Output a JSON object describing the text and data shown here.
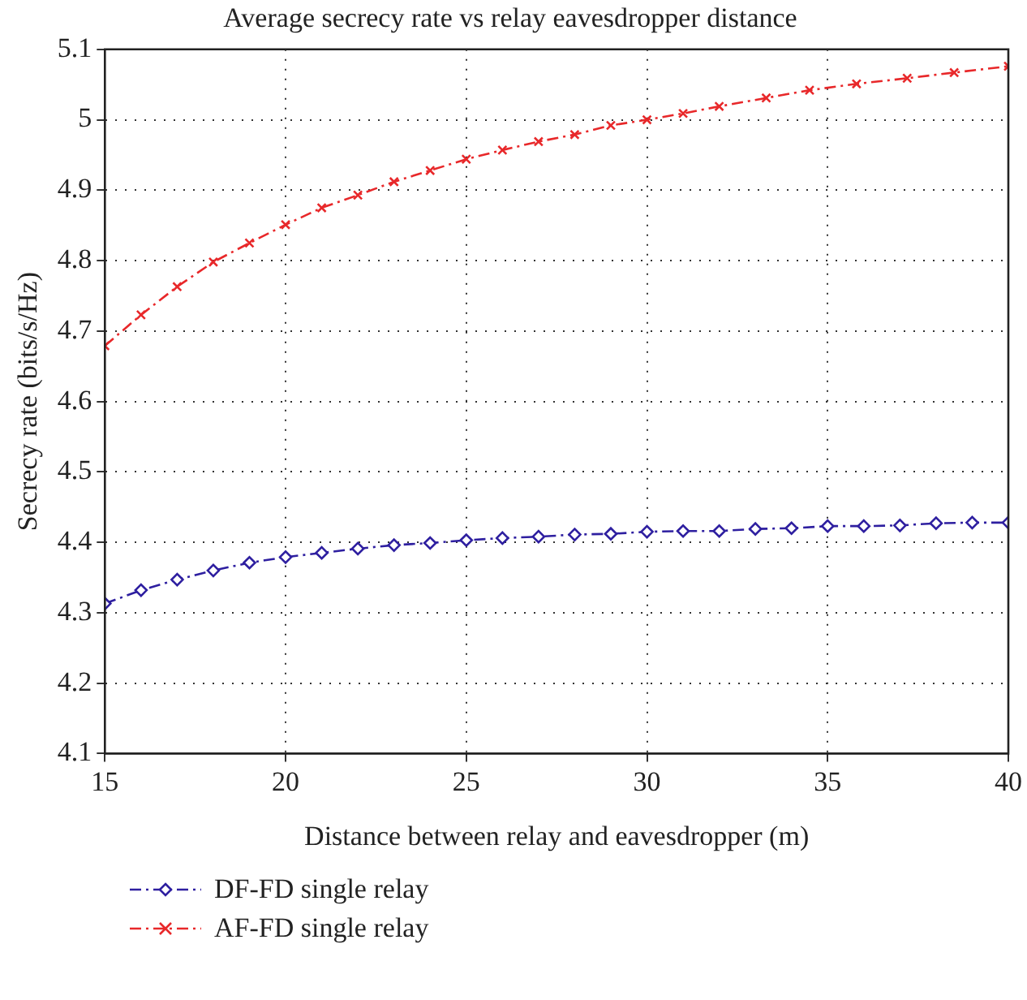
{
  "chart_data": {
    "type": "line",
    "title": "Average secrecy rate vs relay eavesdropper distance",
    "xlabel": "Distance between relay and eavesdropper (m)",
    "ylabel": "Secrecy rate (bits/s/Hz)",
    "xlim": [
      15,
      40
    ],
    "xticks": [
      15,
      20,
      25,
      30,
      35,
      40
    ],
    "ylim": [
      4.1,
      5.1
    ],
    "yticks": [
      4.1,
      4.2,
      4.3,
      4.4,
      4.5,
      4.6,
      4.7,
      4.8,
      4.9,
      5,
      5.1
    ],
    "grid": true,
    "legend": "bottom",
    "line_style": "dashed",
    "series": [
      {
        "name": "DF-FD single relay",
        "color": "#2e1fa0",
        "marker": "diamond",
        "x": [
          15,
          16,
          17,
          18,
          19,
          20,
          21,
          22,
          23,
          24,
          25,
          26,
          27,
          28,
          29,
          30,
          31,
          32,
          33,
          34,
          35,
          36,
          37,
          38,
          39,
          40
        ],
        "values": [
          4.313,
          4.332,
          4.347,
          4.36,
          4.371,
          4.379,
          4.385,
          4.391,
          4.396,
          4.399,
          4.403,
          4.406,
          4.408,
          4.411,
          4.412,
          4.415,
          4.416,
          4.416,
          4.419,
          4.42,
          4.423,
          4.423,
          4.424,
          4.427,
          4.428,
          4.428
        ]
      },
      {
        "name": "AF-FD single relay",
        "color": "#e8282a",
        "marker": "cross",
        "x": [
          15,
          16,
          17,
          18,
          19,
          20,
          21,
          22,
          23,
          24,
          25,
          26,
          27,
          28,
          29,
          30,
          31,
          32,
          33.3,
          34.5,
          35.8,
          37.2,
          38.5,
          40
        ],
        "values": [
          4.679,
          4.723,
          4.763,
          4.798,
          4.825,
          4.851,
          4.875,
          4.893,
          4.912,
          4.928,
          4.944,
          4.957,
          4.969,
          4.979,
          4.992,
          5.0,
          5.009,
          5.019,
          5.031,
          5.042,
          5.051,
          5.059,
          5.067,
          5.076
        ]
      }
    ]
  }
}
